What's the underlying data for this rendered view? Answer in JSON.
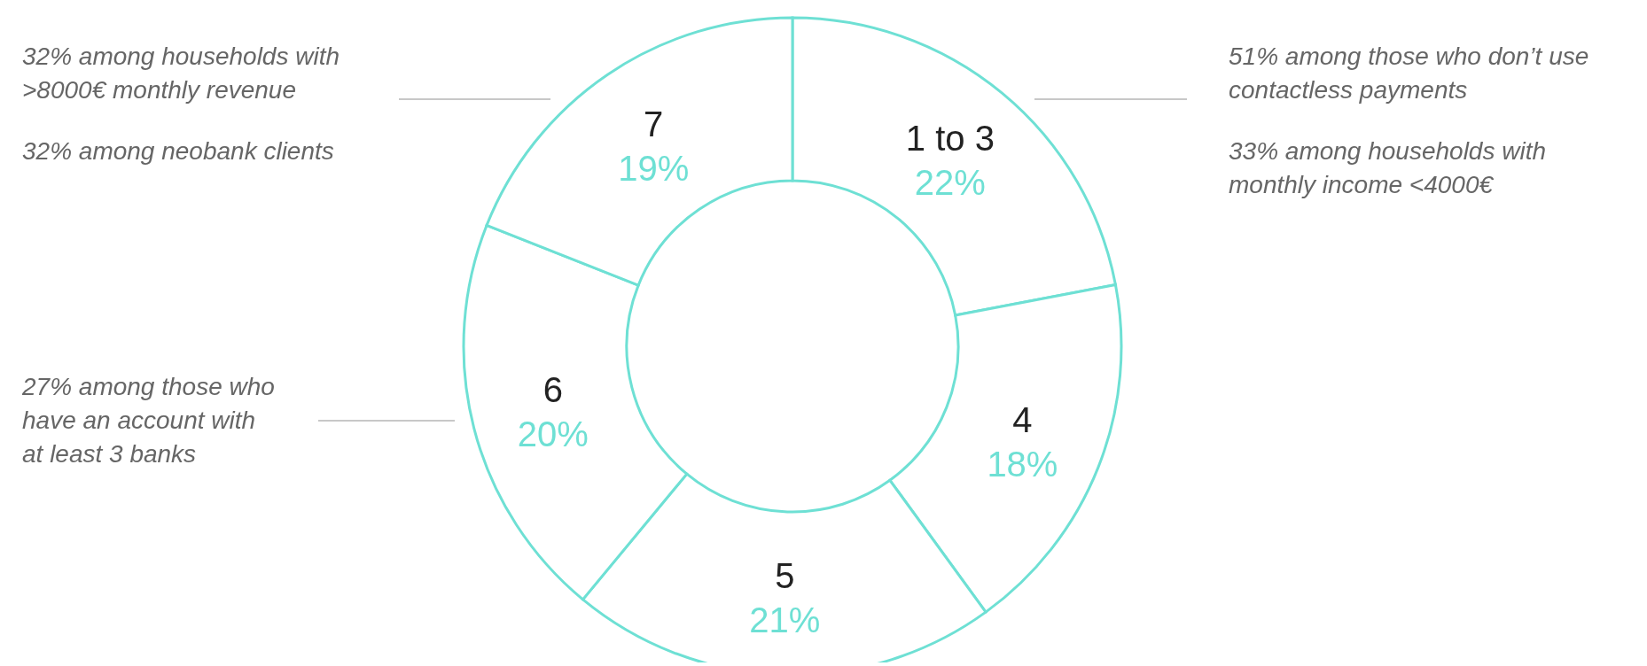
{
  "chart_data": {
    "type": "donut",
    "categories": [
      "1 to 3",
      "4",
      "5",
      "6",
      "7"
    ],
    "values": [
      22,
      18,
      21,
      20,
      19
    ],
    "colors": [
      "#6ee0d4",
      "#6ee0d4",
      "#6ee0d4",
      "#6ee0d4",
      "#6ee0d4"
    ],
    "value_labels": [
      "22%",
      "18%",
      "21%",
      "20%",
      "19%"
    ],
    "annotations": [
      "32% among households with >8000€ monthly revenue",
      "32% among neobank clients",
      "27% among those who have an account with at least 3 banks",
      "51% among those who don’t use contactless payments",
      "33% among households with monthly income <4000€"
    ]
  }
}
